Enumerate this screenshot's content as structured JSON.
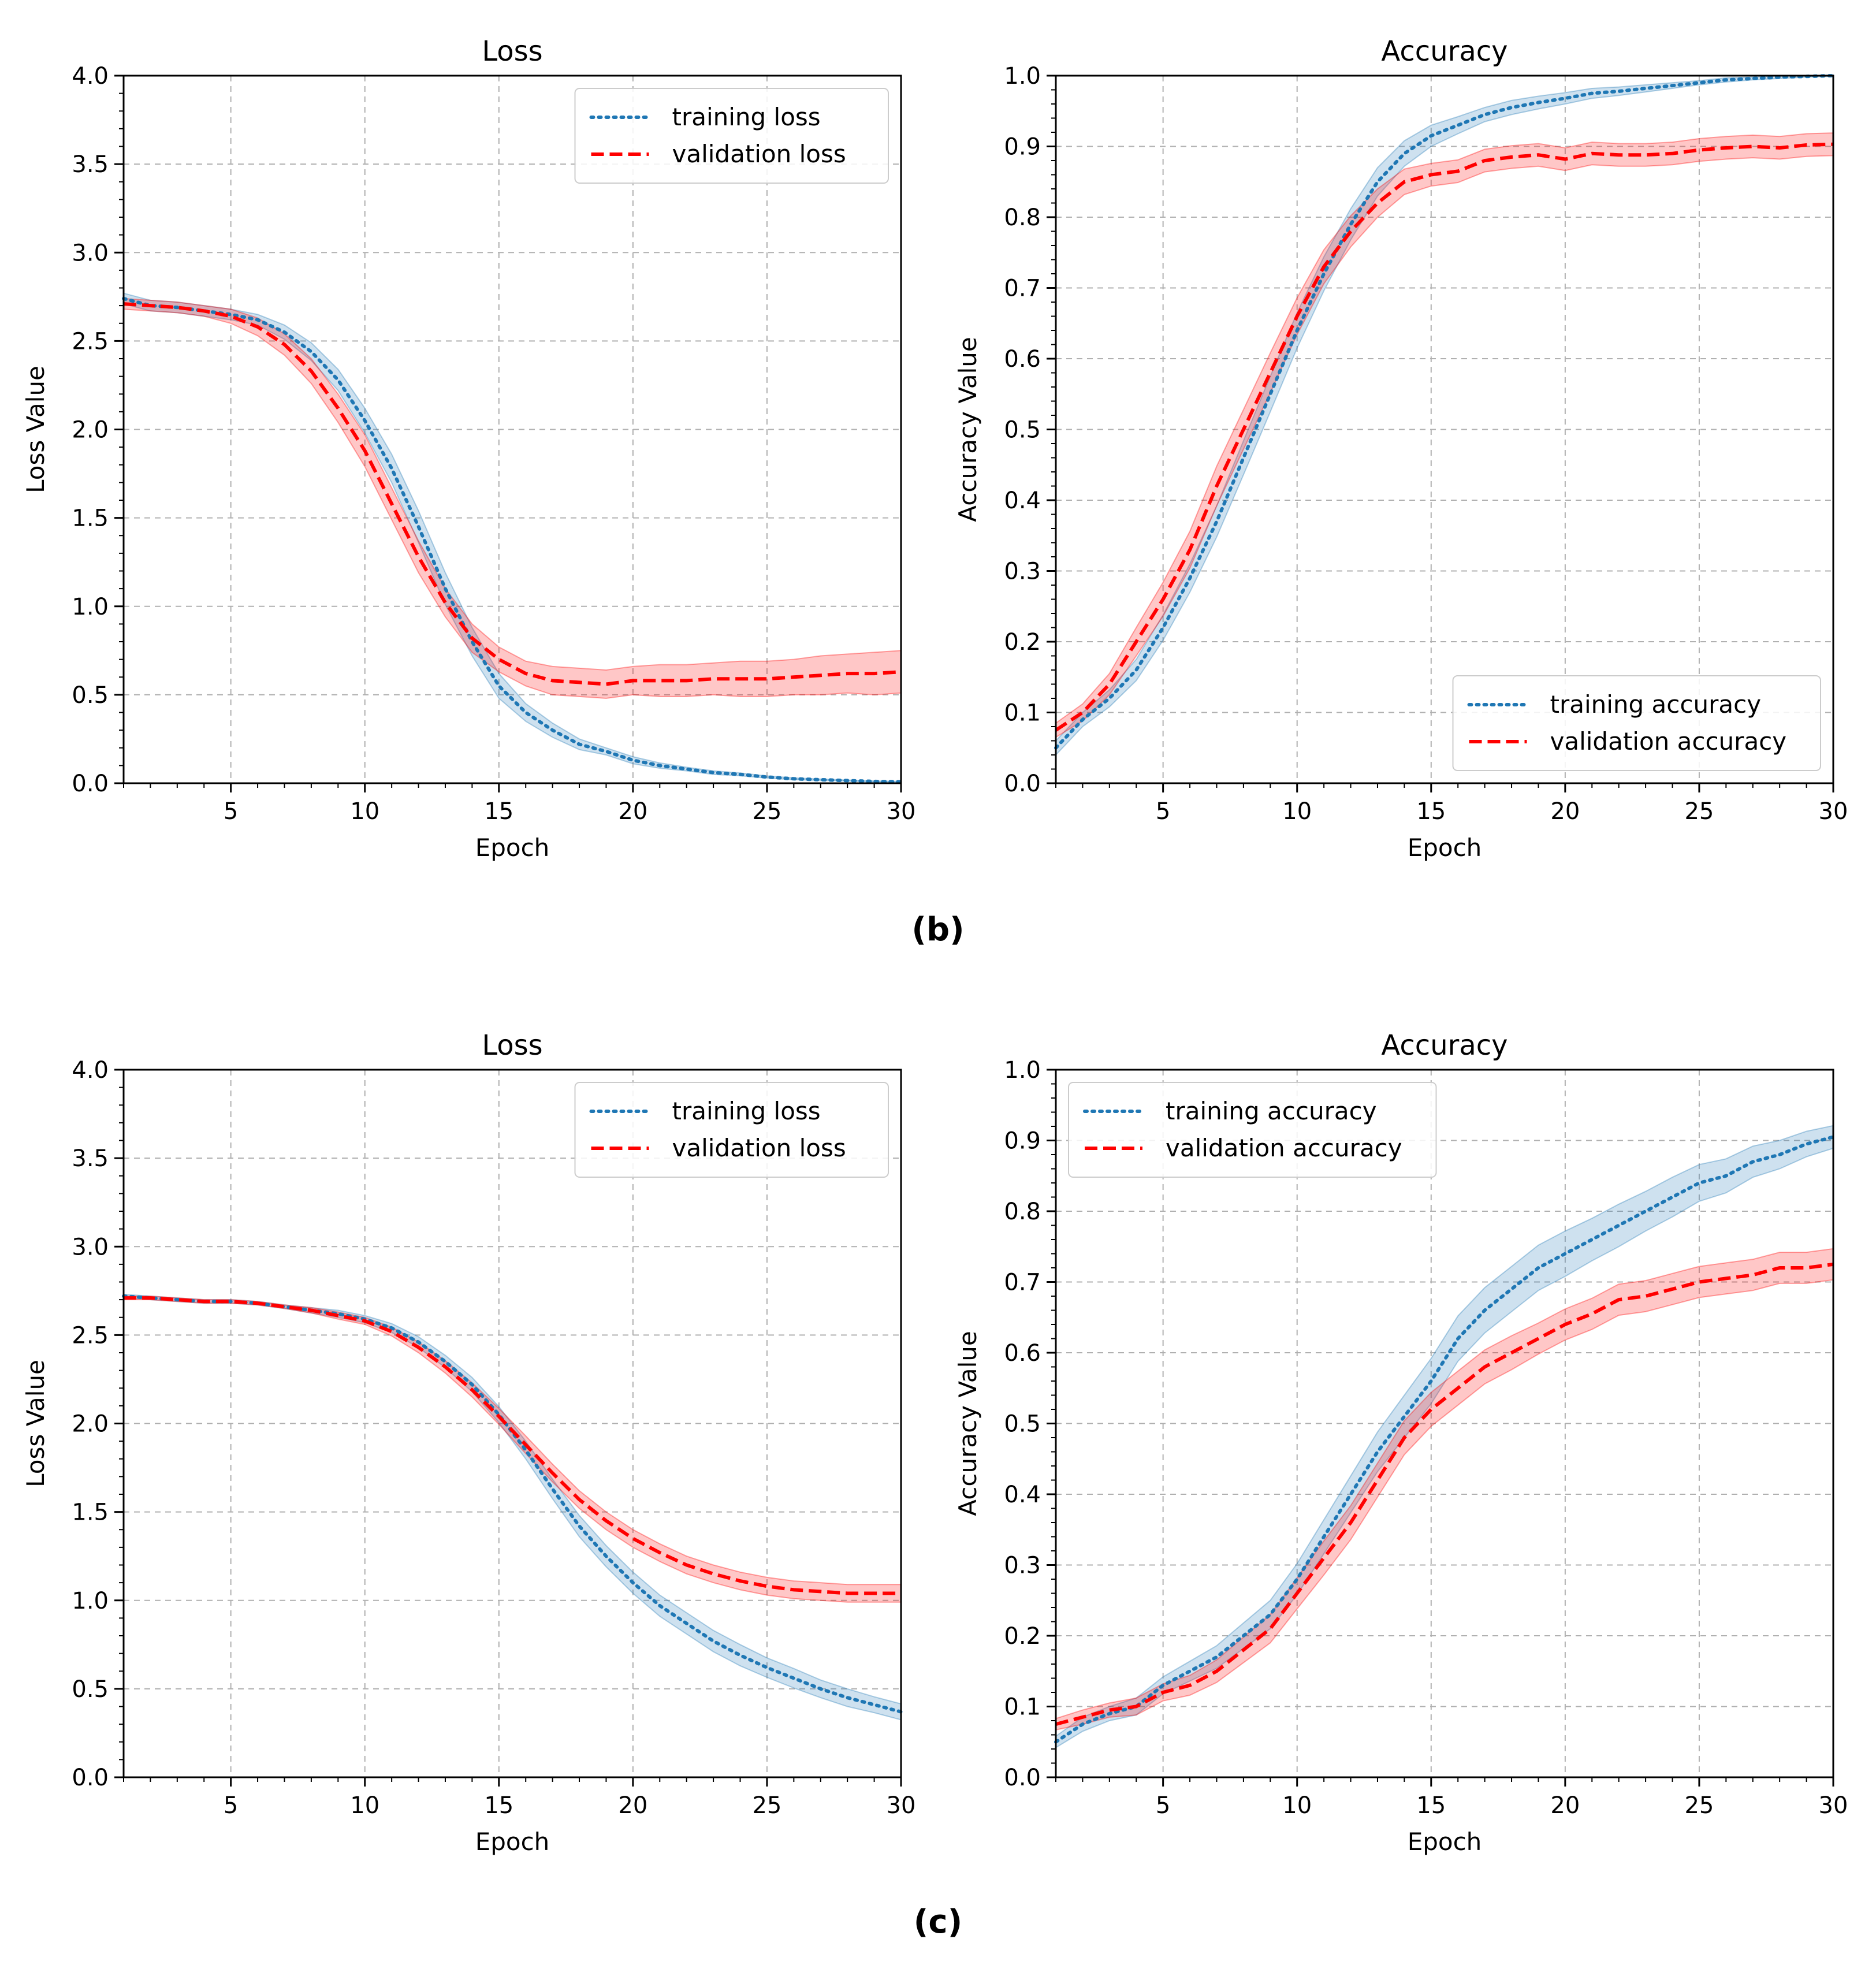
{
  "captions": {
    "b": "(b)",
    "c": "(c)"
  },
  "colors": {
    "training": "#1f77b4",
    "validation": "#ff0000",
    "training_band": "#1f77b4",
    "validation_band": "#ff0000",
    "grid": "#b0b0b0"
  },
  "chart_data": [
    {
      "id": "b-loss",
      "type": "line",
      "title": "Loss",
      "xlabel": "Epoch",
      "ylabel": "Loss Value",
      "xlim": [
        1,
        30
      ],
      "ylim": [
        0,
        4
      ],
      "xticks": [
        5,
        10,
        15,
        20,
        25,
        30
      ],
      "yticks": [
        "0.0",
        "0.5",
        "1.0",
        "1.5",
        "2.0",
        "2.5",
        "3.0",
        "3.5",
        "4.0"
      ],
      "grid": true,
      "legend": "top-right",
      "x": [
        1,
        2,
        3,
        4,
        5,
        6,
        7,
        8,
        9,
        10,
        11,
        12,
        13,
        14,
        15,
        16,
        17,
        18,
        19,
        20,
        21,
        22,
        23,
        24,
        25,
        26,
        27,
        28,
        29,
        30
      ],
      "series": [
        {
          "name": "training loss",
          "style": "dotted",
          "values": [
            2.74,
            2.7,
            2.69,
            2.67,
            2.65,
            2.62,
            2.55,
            2.44,
            2.28,
            2.05,
            1.78,
            1.45,
            1.1,
            0.8,
            0.55,
            0.4,
            0.3,
            0.22,
            0.18,
            0.13,
            0.1,
            0.08,
            0.06,
            0.05,
            0.035,
            0.025,
            0.02,
            0.015,
            0.01,
            0.008
          ],
          "band": [
            0.03,
            0.03,
            0.03,
            0.03,
            0.03,
            0.03,
            0.04,
            0.05,
            0.06,
            0.07,
            0.08,
            0.09,
            0.09,
            0.08,
            0.07,
            0.05,
            0.04,
            0.03,
            0.02,
            0.02,
            0.015,
            0.01,
            0.01,
            0.008,
            0.006,
            0.005,
            0.004,
            0.003,
            0.003,
            0.002
          ]
        },
        {
          "name": "validation loss",
          "style": "dashed",
          "values": [
            2.71,
            2.7,
            2.69,
            2.67,
            2.64,
            2.58,
            2.48,
            2.33,
            2.12,
            1.88,
            1.58,
            1.28,
            1.02,
            0.82,
            0.7,
            0.62,
            0.58,
            0.57,
            0.56,
            0.58,
            0.58,
            0.58,
            0.59,
            0.59,
            0.59,
            0.6,
            0.61,
            0.62,
            0.62,
            0.63
          ],
          "band": [
            0.03,
            0.03,
            0.03,
            0.03,
            0.04,
            0.05,
            0.06,
            0.07,
            0.08,
            0.09,
            0.09,
            0.09,
            0.08,
            0.08,
            0.07,
            0.07,
            0.08,
            0.08,
            0.08,
            0.08,
            0.09,
            0.09,
            0.09,
            0.1,
            0.1,
            0.1,
            0.11,
            0.11,
            0.12,
            0.12
          ]
        }
      ]
    },
    {
      "id": "b-acc",
      "type": "line",
      "title": "Accuracy",
      "xlabel": "Epoch",
      "ylabel": "Accuracy Value",
      "xlim": [
        1,
        30
      ],
      "ylim": [
        0,
        1
      ],
      "xticks": [
        5,
        10,
        15,
        20,
        25,
        30
      ],
      "yticks": [
        "0.0",
        "0.1",
        "0.2",
        "0.3",
        "0.4",
        "0.5",
        "0.6",
        "0.7",
        "0.8",
        "0.9",
        "1.0"
      ],
      "grid": true,
      "legend": "bottom-right",
      "x": [
        1,
        2,
        3,
        4,
        5,
        6,
        7,
        8,
        9,
        10,
        11,
        12,
        13,
        14,
        15,
        16,
        17,
        18,
        19,
        20,
        21,
        22,
        23,
        24,
        25,
        26,
        27,
        28,
        29,
        30
      ],
      "series": [
        {
          "name": "training accuracy",
          "style": "dotted",
          "values": [
            0.05,
            0.09,
            0.12,
            0.16,
            0.22,
            0.29,
            0.37,
            0.46,
            0.55,
            0.64,
            0.72,
            0.79,
            0.85,
            0.89,
            0.915,
            0.93,
            0.945,
            0.955,
            0.962,
            0.968,
            0.975,
            0.978,
            0.982,
            0.986,
            0.99,
            0.994,
            0.996,
            0.998,
            0.999,
            1.0
          ],
          "band": [
            0.01,
            0.01,
            0.012,
            0.015,
            0.018,
            0.02,
            0.022,
            0.024,
            0.025,
            0.025,
            0.024,
            0.022,
            0.02,
            0.018,
            0.015,
            0.012,
            0.01,
            0.01,
            0.009,
            0.008,
            0.007,
            0.006,
            0.005,
            0.004,
            0.003,
            0.003,
            0.002,
            0.002,
            0.001,
            0.001
          ]
        },
        {
          "name": "validation accuracy",
          "style": "dashed",
          "values": [
            0.075,
            0.1,
            0.14,
            0.2,
            0.26,
            0.33,
            0.42,
            0.5,
            0.58,
            0.66,
            0.73,
            0.78,
            0.82,
            0.85,
            0.86,
            0.865,
            0.88,
            0.885,
            0.888,
            0.882,
            0.89,
            0.888,
            0.888,
            0.89,
            0.895,
            0.898,
            0.9,
            0.898,
            0.902,
            0.903
          ],
          "band": [
            0.01,
            0.012,
            0.015,
            0.02,
            0.024,
            0.026,
            0.028,
            0.028,
            0.028,
            0.026,
            0.024,
            0.022,
            0.02,
            0.018,
            0.016,
            0.016,
            0.016,
            0.016,
            0.016,
            0.016,
            0.016,
            0.016,
            0.016,
            0.016,
            0.016,
            0.016,
            0.016,
            0.016,
            0.016,
            0.016
          ]
        }
      ]
    },
    {
      "id": "c-loss",
      "type": "line",
      "title": "Loss",
      "xlabel": "Epoch",
      "ylabel": "Loss Value",
      "xlim": [
        1,
        30
      ],
      "ylim": [
        0,
        4
      ],
      "xticks": [
        5,
        10,
        15,
        20,
        25,
        30
      ],
      "yticks": [
        "0.0",
        "0.5",
        "1.0",
        "1.5",
        "2.0",
        "2.5",
        "3.0",
        "3.5",
        "4.0"
      ],
      "grid": true,
      "legend": "top-right",
      "x": [
        1,
        2,
        3,
        4,
        5,
        6,
        7,
        8,
        9,
        10,
        11,
        12,
        13,
        14,
        15,
        16,
        17,
        18,
        19,
        20,
        21,
        22,
        23,
        24,
        25,
        26,
        27,
        28,
        29,
        30
      ],
      "series": [
        {
          "name": "training loss",
          "style": "dotted",
          "values": [
            2.72,
            2.71,
            2.7,
            2.69,
            2.69,
            2.68,
            2.66,
            2.64,
            2.62,
            2.59,
            2.54,
            2.46,
            2.35,
            2.22,
            2.05,
            1.85,
            1.63,
            1.42,
            1.25,
            1.1,
            0.97,
            0.87,
            0.77,
            0.69,
            0.62,
            0.56,
            0.5,
            0.45,
            0.41,
            0.37
          ],
          "band": [
            0.01,
            0.01,
            0.01,
            0.01,
            0.01,
            0.01,
            0.01,
            0.015,
            0.02,
            0.02,
            0.025,
            0.03,
            0.035,
            0.04,
            0.045,
            0.05,
            0.055,
            0.06,
            0.06,
            0.06,
            0.06,
            0.06,
            0.06,
            0.06,
            0.055,
            0.055,
            0.05,
            0.05,
            0.045,
            0.045
          ]
        },
        {
          "name": "validation loss",
          "style": "dashed",
          "values": [
            2.71,
            2.71,
            2.7,
            2.69,
            2.69,
            2.68,
            2.66,
            2.64,
            2.61,
            2.58,
            2.52,
            2.43,
            2.32,
            2.19,
            2.04,
            1.88,
            1.72,
            1.57,
            1.45,
            1.35,
            1.27,
            1.2,
            1.15,
            1.11,
            1.08,
            1.06,
            1.05,
            1.04,
            1.04,
            1.04
          ],
          "band": [
            0.01,
            0.01,
            0.01,
            0.01,
            0.01,
            0.01,
            0.01,
            0.015,
            0.02,
            0.02,
            0.025,
            0.03,
            0.035,
            0.04,
            0.045,
            0.05,
            0.05,
            0.05,
            0.05,
            0.05,
            0.05,
            0.05,
            0.05,
            0.05,
            0.05,
            0.05,
            0.05,
            0.05,
            0.05,
            0.05
          ]
        }
      ]
    },
    {
      "id": "c-acc",
      "type": "line",
      "title": "Accuracy",
      "xlabel": "Epoch",
      "ylabel": "Accuracy Value",
      "xlim": [
        1,
        30
      ],
      "ylim": [
        0,
        1
      ],
      "xticks": [
        5,
        10,
        15,
        20,
        25,
        30
      ],
      "yticks": [
        "0.0",
        "0.1",
        "0.2",
        "0.3",
        "0.4",
        "0.5",
        "0.6",
        "0.7",
        "0.8",
        "0.9",
        "1.0"
      ],
      "grid": true,
      "legend": "top-left",
      "x": [
        1,
        2,
        3,
        4,
        5,
        6,
        7,
        8,
        9,
        10,
        11,
        12,
        13,
        14,
        15,
        16,
        17,
        18,
        19,
        20,
        21,
        22,
        23,
        24,
        25,
        26,
        27,
        28,
        29,
        30
      ],
      "series": [
        {
          "name": "training accuracy",
          "style": "dotted",
          "values": [
            0.05,
            0.075,
            0.09,
            0.1,
            0.13,
            0.15,
            0.17,
            0.2,
            0.23,
            0.28,
            0.34,
            0.4,
            0.46,
            0.51,
            0.56,
            0.62,
            0.66,
            0.69,
            0.72,
            0.74,
            0.76,
            0.78,
            0.8,
            0.82,
            0.84,
            0.85,
            0.87,
            0.88,
            0.895,
            0.905
          ],
          "band": [
            0.008,
            0.01,
            0.01,
            0.012,
            0.012,
            0.014,
            0.016,
            0.018,
            0.02,
            0.022,
            0.024,
            0.026,
            0.028,
            0.03,
            0.032,
            0.032,
            0.032,
            0.032,
            0.032,
            0.032,
            0.03,
            0.03,
            0.028,
            0.028,
            0.026,
            0.024,
            0.022,
            0.02,
            0.018,
            0.016
          ]
        },
        {
          "name": "validation accuracy",
          "style": "dashed",
          "values": [
            0.075,
            0.085,
            0.095,
            0.1,
            0.12,
            0.13,
            0.15,
            0.18,
            0.21,
            0.26,
            0.31,
            0.36,
            0.42,
            0.48,
            0.52,
            0.55,
            0.58,
            0.6,
            0.62,
            0.64,
            0.655,
            0.675,
            0.68,
            0.69,
            0.7,
            0.705,
            0.71,
            0.72,
            0.72,
            0.725
          ],
          "band": [
            0.008,
            0.01,
            0.01,
            0.012,
            0.012,
            0.014,
            0.016,
            0.018,
            0.02,
            0.022,
            0.024,
            0.024,
            0.024,
            0.024,
            0.024,
            0.024,
            0.024,
            0.024,
            0.022,
            0.022,
            0.022,
            0.022,
            0.022,
            0.022,
            0.022,
            0.022,
            0.022,
            0.022,
            0.022,
            0.022
          ]
        }
      ]
    }
  ]
}
